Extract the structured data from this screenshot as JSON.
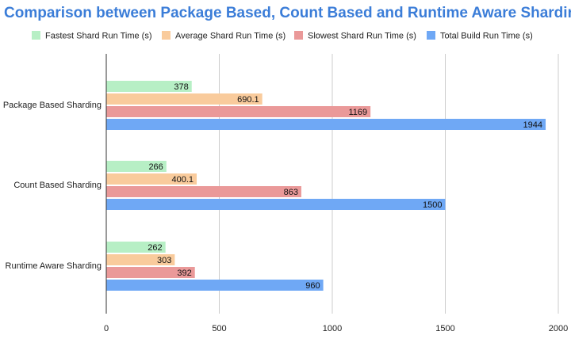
{
  "chart_data": {
    "type": "bar",
    "orientation": "horizontal",
    "title": "Comparison between Package Based, Count Based and Runtime Aware Sharding",
    "categories": [
      "Package Based Sharding",
      "Count Based Sharding",
      "Runtime Aware Sharding"
    ],
    "series": [
      {
        "name": "Fastest Shard Run Time (s)",
        "values": [
          378,
          266,
          262
        ],
        "labels": [
          "378",
          "266",
          "262"
        ],
        "color": "#b7efc5"
      },
      {
        "name": "Average Shard Run Time (s)",
        "values": [
          690.1,
          400.1,
          303
        ],
        "labels": [
          "690.1",
          "400.1",
          "303"
        ],
        "color": "#f9cb9c"
      },
      {
        "name": "Slowest Shard Run Time (s)",
        "values": [
          1169,
          863,
          392
        ],
        "labels": [
          "1169",
          "863",
          "392"
        ],
        "color": "#ea9999"
      },
      {
        "name": "Total Build Run Time (s)",
        "values": [
          1944,
          1500,
          960
        ],
        "labels": [
          "1944",
          "1500",
          "960"
        ],
        "color": "#6fa8f5"
      }
    ],
    "xlim": [
      0,
      2000
    ],
    "xticks": [
      "0",
      "500",
      "1000",
      "1500",
      "2000"
    ],
    "grid": true,
    "legend_position": "top",
    "title_color": "#3b7dd8"
  }
}
